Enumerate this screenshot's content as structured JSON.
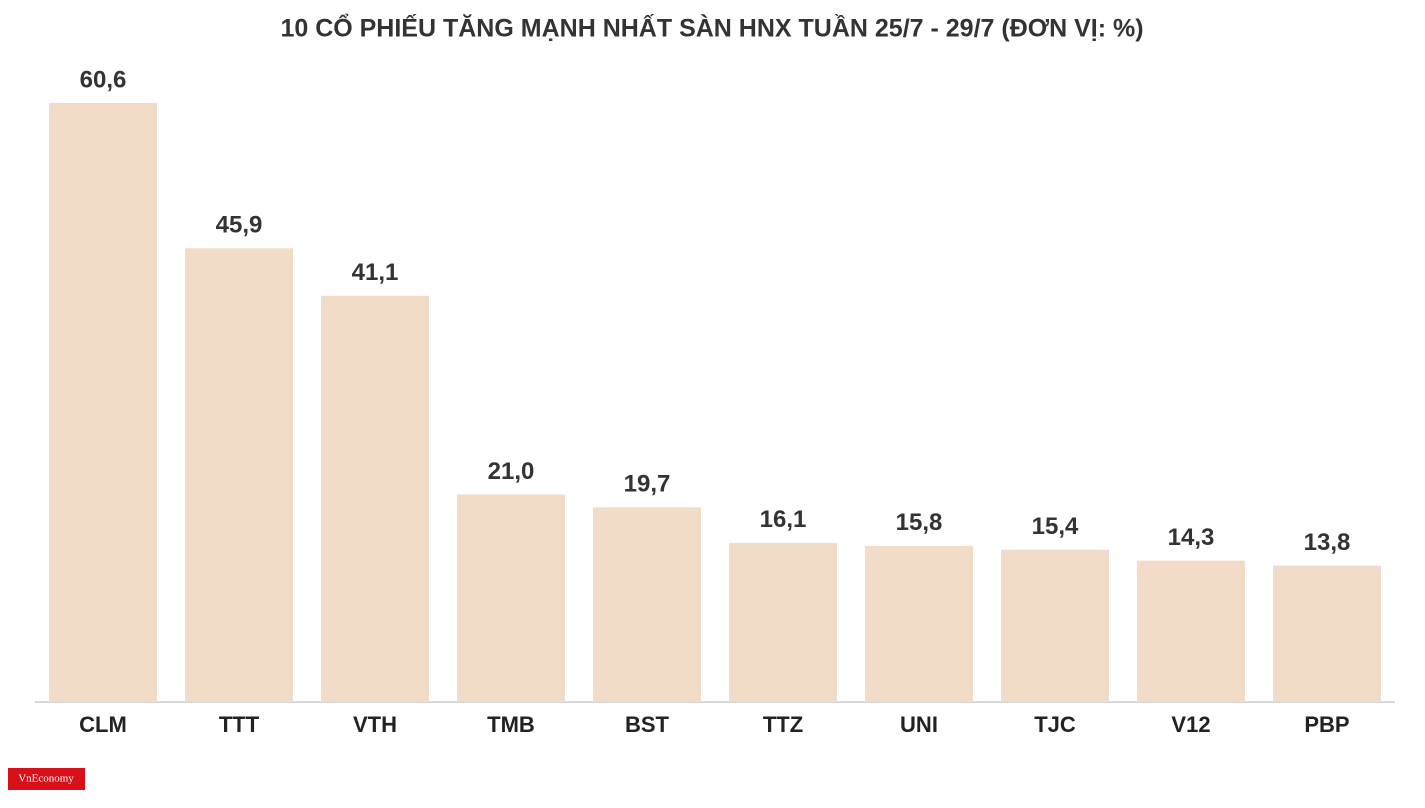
{
  "chart_data": {
    "type": "bar",
    "title": "10 CỔ PHIẾU TĂNG MẠNH NHẤT SÀN HNX TUẦN 25/7 - 29/7 (ĐƠN VỊ: %)",
    "categories": [
      "CLM",
      "TTT",
      "VTH",
      "TMB",
      "BST",
      "TTZ",
      "UNI",
      "TJC",
      "V12",
      "PBP"
    ],
    "values": [
      60.6,
      45.9,
      41.1,
      21.0,
      19.7,
      16.1,
      15.8,
      15.4,
      14.3,
      13.8
    ],
    "value_labels": [
      "60,6",
      "45,9",
      "41,1",
      "21,0",
      "19,7",
      "16,1",
      "15,8",
      "15,4",
      "14,3",
      "13,8"
    ],
    "color": "#f2dcc8",
    "ylim": [
      0,
      60.6
    ]
  },
  "logo": "VnEconomy"
}
